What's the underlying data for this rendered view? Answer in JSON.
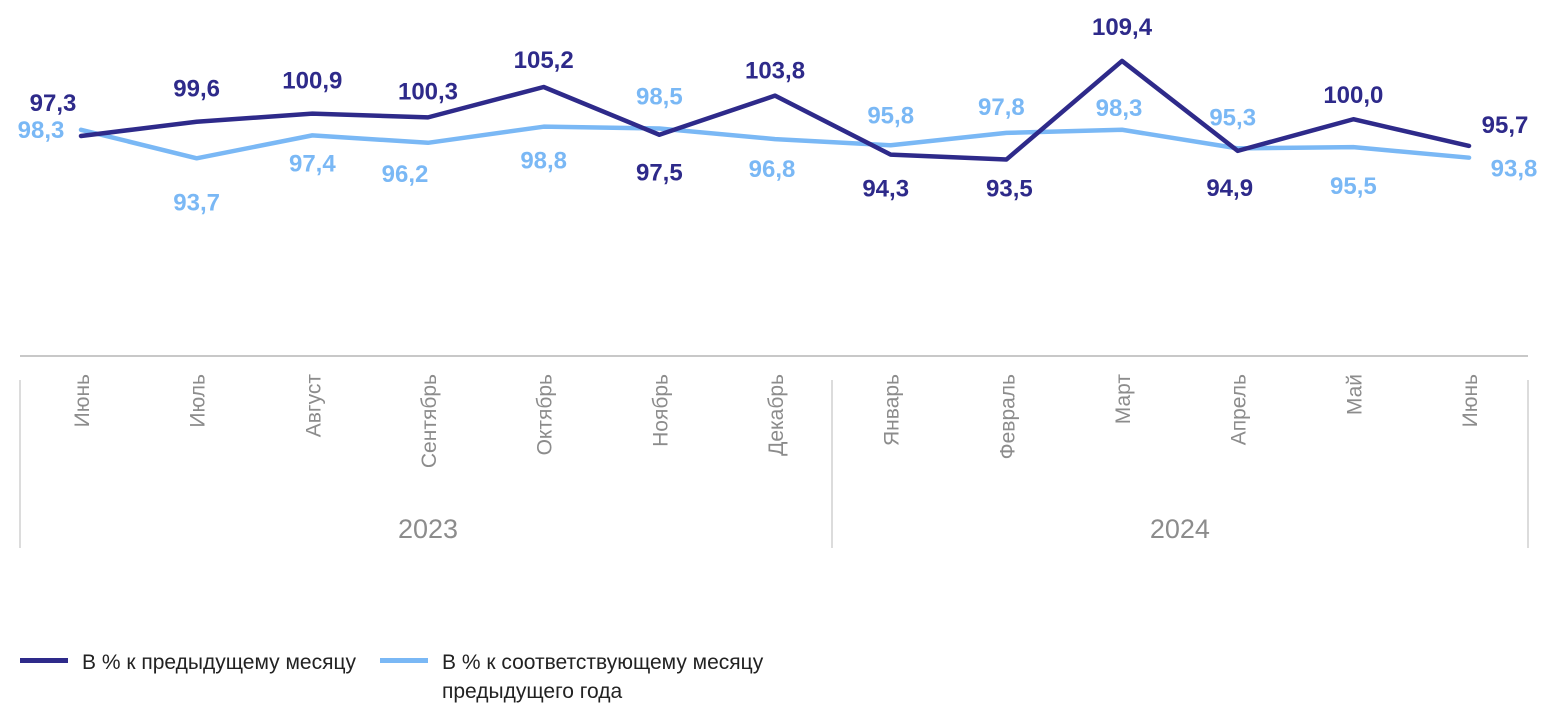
{
  "chart_data": {
    "type": "line",
    "categories": [
      "Июнь",
      "Июль",
      "Август",
      "Сентябрь",
      "Октябрь",
      "Ноябрь",
      "Декабрь",
      "Январь",
      "Февраль",
      "Март",
      "Апрель",
      "Май",
      "Июнь"
    ],
    "groups": [
      {
        "label": "2023",
        "from": 0,
        "to": 6
      },
      {
        "label": "2024",
        "from": 7,
        "to": 12
      }
    ],
    "series": [
      {
        "name": "В % к предыдущему месяцу",
        "color": "#2e2a8a",
        "values": [
          97.3,
          99.6,
          100.9,
          100.3,
          105.2,
          97.5,
          103.8,
          94.3,
          93.5,
          109.4,
          94.9,
          100.0,
          95.7
        ],
        "labels": [
          "97,3",
          "99,6",
          "100,9",
          "100,3",
          "105,2",
          "97,5",
          "103,8",
          "94,3",
          "93,5",
          "109,4",
          "94,9",
          "100,0",
          "95,7"
        ]
      },
      {
        "name": "В % к соответствующему месяцу предыдущего года",
        "color": "#7ab8f5",
        "values": [
          98.3,
          93.7,
          97.4,
          96.2,
          98.8,
          98.5,
          96.8,
          95.8,
          97.8,
          98.3,
          95.3,
          95.5,
          93.8
        ],
        "labels": [
          "98,3",
          "93,7",
          "97,4",
          "96,2",
          "98,8",
          "98,5",
          "96,8",
          "95,8",
          "97,8",
          "98,3",
          "95,3",
          "95,5",
          "93,8"
        ]
      }
    ],
    "legend_position": "bottom-left",
    "grid": false
  },
  "legend": {
    "item1": "В % к предыдущему месяцу",
    "item2_line1": "В % к соответствующему месяцу",
    "item2_line2": "предыдущего года"
  }
}
